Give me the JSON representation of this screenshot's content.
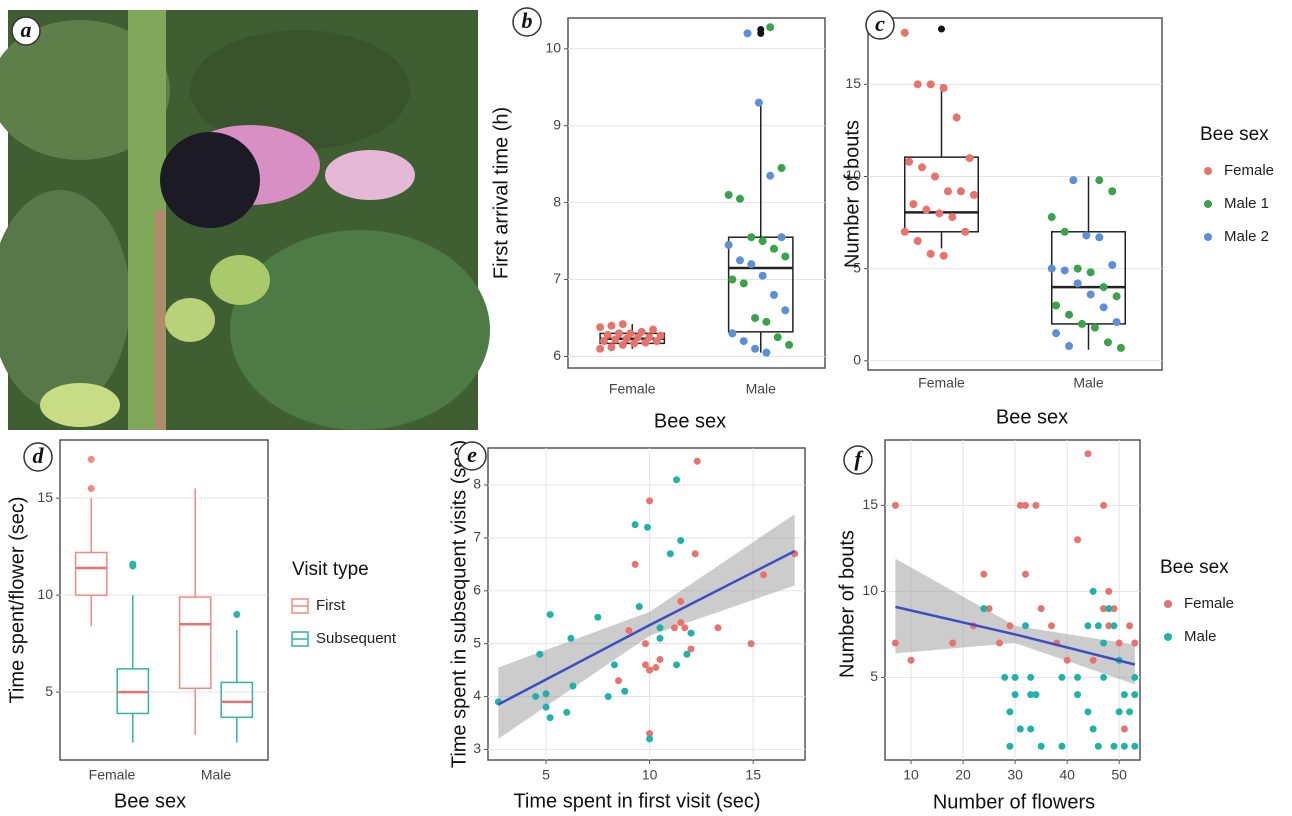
{
  "photo_panel": {
    "panel_label": "a"
  },
  "chart_data": [
    {
      "type": "box",
      "panel_label": "b",
      "y_label": "First arrival time (h)",
      "x_label": "Bee sex",
      "categories": [
        "Female",
        "Male"
      ],
      "ylim": [
        5.85,
        10.4
      ],
      "yticks": [
        6,
        7,
        8,
        9,
        10
      ],
      "grid": true,
      "outlier_color": "#111111",
      "boxes": [
        {
          "min": 6.1,
          "q1": 6.17,
          "median": 6.23,
          "q3": 6.3,
          "max": 6.42,
          "outliers": []
        },
        {
          "min": 6.05,
          "q1": 6.32,
          "median": 7.15,
          "q3": 7.55,
          "max": 9.32,
          "outliers": [
            10.2,
            10.25
          ]
        }
      ],
      "series": [
        {
          "name": "Female",
          "color": "#e8736c",
          "values": [
            6.1,
            6.12,
            6.15,
            6.17,
            6.18,
            6.2,
            6.2,
            6.22,
            6.23,
            6.25,
            6.25,
            6.27,
            6.28,
            6.3,
            6.3,
            6.32,
            6.35,
            6.38,
            6.4,
            6.42
          ]
        },
        {
          "name": "Male 1",
          "color": "#3aa34a",
          "values": [
            10.28,
            8.45,
            8.1,
            8.05,
            7.55,
            7.5,
            7.4,
            7.3,
            7.0,
            6.95,
            6.5,
            6.45,
            6.25,
            6.15
          ]
        },
        {
          "name": "Male 2",
          "color": "#5b8fd6",
          "values": [
            10.2,
            9.3,
            8.35,
            7.55,
            7.45,
            7.25,
            7.2,
            7.05,
            6.8,
            6.6,
            6.3,
            6.2,
            6.1,
            6.05
          ]
        }
      ]
    },
    {
      "type": "box",
      "panel_label": "c",
      "y_label": "Number of bouts",
      "x_label": "Bee sex",
      "categories": [
        "Female",
        "Male"
      ],
      "ylim": [
        -0.5,
        18.6
      ],
      "yticks": [
        0,
        5,
        10,
        15
      ],
      "grid": true,
      "outlier_color": "#111111",
      "legend_title": "Bee sex",
      "boxes": [
        {
          "min": 6.1,
          "q1": 7,
          "median": 8.05,
          "q3": 11.05,
          "max": 15,
          "outliers": [
            18
          ]
        },
        {
          "min": 0.6,
          "q1": 2,
          "median": 4,
          "q3": 7,
          "max": 10,
          "outliers": []
        }
      ],
      "series": [
        {
          "name": "Female",
          "color": "#e8736c",
          "values": [
            17.8,
            15,
            15,
            14.8,
            13.2,
            11,
            10.8,
            10.5,
            10,
            9.2,
            9.2,
            9,
            8.5,
            8.2,
            8,
            7.8,
            7,
            7,
            6.5,
            5.8,
            5.7
          ]
        },
        {
          "name": "Male 1",
          "color": "#3aa34a",
          "values": [
            9.8,
            9.2,
            7.8,
            7,
            5,
            4.8,
            4,
            3.5,
            3,
            2.5,
            2,
            1.8,
            1,
            0.7
          ]
        },
        {
          "name": "Male 2",
          "color": "#5b8fd6",
          "values": [
            9.8,
            6.8,
            6.7,
            5.2,
            5,
            4.9,
            4.2,
            3.6,
            2.9,
            2.1,
            1.5,
            0.8
          ]
        }
      ]
    },
    {
      "type": "box",
      "panel_label": "d",
      "y_label": "Time spent/flower (sec)",
      "x_label": "Bee sex",
      "categories": [
        "Female",
        "Male"
      ],
      "ylim": [
        1.5,
        18
      ],
      "yticks": [
        5,
        10,
        15
      ],
      "grid": true,
      "legend_title": "Visit type",
      "series": [
        {
          "name": "First",
          "color": "#f08a80",
          "boxes": [
            {
              "min": 8.4,
              "q1": 10,
              "median": 11.4,
              "q3": 12.2,
              "max": 15,
              "outliers": [
                15.5,
                17
              ]
            },
            {
              "min": 2.8,
              "q1": 5.2,
              "median": 8.5,
              "q3": 9.9,
              "max": 15.5,
              "outliers": []
            }
          ]
        },
        {
          "name": "Subsequent",
          "color": "#2fb5a5",
          "boxes": [
            {
              "min": 2.4,
              "q1": 3.9,
              "median": 5,
              "q3": 6.2,
              "max": 10,
              "outliers": [
                11.5,
                11.6
              ]
            },
            {
              "min": 2.4,
              "q1": 3.7,
              "median": 4.5,
              "q3": 5.5,
              "max": 8.2,
              "outliers": [
                9
              ]
            }
          ]
        }
      ]
    },
    {
      "type": "scatter",
      "panel_label": "e",
      "y_label": "Time spent in subsequent visits (sec)",
      "x_label": "Time spent in first visit (sec)",
      "xlim": [
        2.2,
        17.5
      ],
      "xticks": [
        5,
        10,
        15
      ],
      "ylim": [
        2.8,
        8.7
      ],
      "yticks": [
        3,
        4,
        5,
        6,
        7,
        8
      ],
      "grid": true,
      "series": [
        {
          "name": "Female",
          "color": "#e8736c",
          "x": [
            8.5,
            9,
            9.3,
            9.8,
            9.8,
            10,
            10,
            10,
            10.3,
            10.5,
            11.2,
            11.5,
            11.5,
            11.7,
            12,
            12.2,
            12.3,
            13.3,
            14.9,
            15.5,
            17
          ],
          "values": [
            4.3,
            5.25,
            6.5,
            5.0,
            4.6,
            7.7,
            3.3,
            4.5,
            4.55,
            4.7,
            5.3,
            5.4,
            5.8,
            5.3,
            4.9,
            6.7,
            8.45,
            5.3,
            5.0,
            6.3,
            6.7
          ]
        },
        {
          "name": "Male",
          "color": "#20b2aa",
          "x": [
            2.7,
            4.5,
            4.7,
            5,
            5,
            5.2,
            5.2,
            6,
            6.2,
            6.3,
            7.5,
            8,
            8.3,
            8.8,
            9.3,
            9.5,
            9.9,
            10,
            10.5,
            10.5,
            11,
            11.3,
            11.3,
            11.5,
            11.8,
            12
          ],
          "values": [
            3.9,
            4.0,
            4.8,
            4.05,
            3.8,
            5.55,
            3.6,
            3.7,
            5.1,
            4.2,
            5.5,
            4.0,
            4.6,
            4.1,
            7.25,
            5.7,
            7.2,
            3.2,
            5.3,
            5.1,
            6.7,
            8.1,
            4.6,
            6.95,
            4.8,
            5.2
          ]
        }
      ],
      "fit": {
        "x": [
          2.7,
          10,
          17
        ],
        "y": [
          3.85,
          5.35,
          6.75
        ],
        "lower": [
          3.2,
          5.15,
          6.1
        ],
        "upper": [
          4.55,
          5.6,
          7.45
        ]
      }
    },
    {
      "type": "scatter",
      "panel_label": "f",
      "y_label": "Number of bouts",
      "x_label": "Number of flowers",
      "xlim": [
        5,
        54
      ],
      "xticks": [
        10,
        20,
        30,
        40,
        50
      ],
      "ylim": [
        0.2,
        18.8
      ],
      "yticks": [
        5,
        10,
        15
      ],
      "grid": true,
      "legend_title": "Bee sex",
      "series": [
        {
          "name": "Female",
          "color": "#e8736c",
          "x": [
            7,
            7,
            10,
            18,
            22,
            24,
            25,
            27,
            29,
            31,
            32,
            32,
            34,
            35,
            37,
            38,
            40,
            42,
            44,
            45,
            47,
            47,
            48,
            48,
            49,
            50,
            51,
            52,
            53
          ],
          "values": [
            15,
            7,
            6,
            7,
            8,
            11,
            9,
            7,
            8,
            15,
            15,
            11,
            15,
            9,
            8,
            7,
            6,
            13,
            18,
            6,
            9,
            15,
            8,
            10,
            9,
            7,
            2,
            8,
            7
          ]
        },
        {
          "name": "Male",
          "color": "#20b2aa",
          "x": [
            24,
            28,
            29,
            29,
            30,
            30,
            31,
            32,
            33,
            33,
            33,
            34,
            35,
            39,
            39,
            42,
            42,
            44,
            44,
            45,
            45,
            46,
            46,
            47,
            47,
            48,
            49,
            49,
            50,
            50,
            51,
            51,
            52,
            53,
            53,
            53
          ],
          "values": [
            9,
            5,
            3,
            1,
            5,
            4,
            2,
            8,
            4,
            5,
            2,
            4,
            1,
            1,
            5,
            5,
            4,
            8,
            3,
            10,
            2,
            8,
            1,
            7,
            5,
            9,
            1,
            8,
            6,
            3,
            4,
            1,
            3,
            5,
            4,
            1
          ]
        }
      ],
      "fit": {
        "x": [
          7,
          30,
          53
        ],
        "y": [
          9.1,
          7.5,
          5.75
        ],
        "lower": [
          6.4,
          7.0,
          4.6
        ],
        "upper": [
          11.9,
          8.0,
          6.9
        ]
      }
    }
  ]
}
